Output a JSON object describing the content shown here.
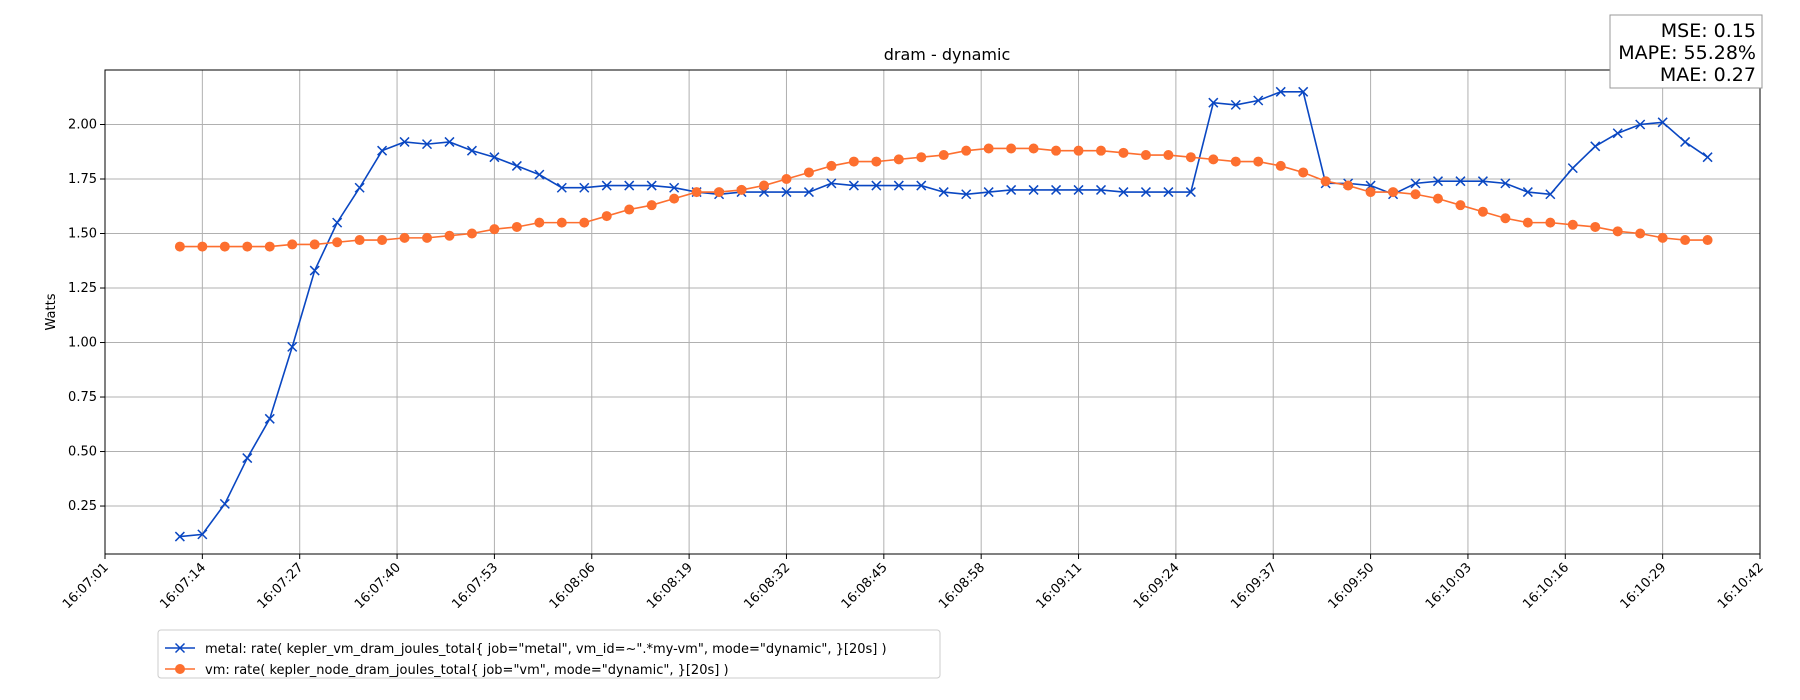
{
  "chart_data": {
    "type": "line",
    "title": "dram - dynamic",
    "xlabel": "",
    "ylabel": "Watts",
    "grid": true,
    "legend_position": "bottom-left",
    "x_ticks": [
      "16:07:01",
      "16:07:14",
      "16:07:27",
      "16:07:40",
      "16:07:53",
      "16:08:06",
      "16:08:19",
      "16:08:32",
      "16:08:45",
      "16:08:58",
      "16:09:11",
      "16:09:24",
      "16:09:37",
      "16:09:50",
      "16:10:03",
      "16:10:16",
      "16:10:29",
      "16:10:42"
    ],
    "y_ticks": [
      0.25,
      0.5,
      0.75,
      1.0,
      1.25,
      1.5,
      1.75,
      2.0
    ],
    "xlim": [
      "16:07:01",
      "16:10:42"
    ],
    "ylim": [
      0.03,
      2.25
    ],
    "x": [
      "16:07:11",
      "16:07:14",
      "16:07:17",
      "16:07:20",
      "16:07:23",
      "16:07:26",
      "16:07:29",
      "16:07:32",
      "16:07:35",
      "16:07:38",
      "16:07:41",
      "16:07:44",
      "16:07:47",
      "16:07:50",
      "16:07:53",
      "16:07:56",
      "16:07:59",
      "16:08:02",
      "16:08:05",
      "16:08:08",
      "16:08:11",
      "16:08:14",
      "16:08:17",
      "16:08:20",
      "16:08:23",
      "16:08:26",
      "16:08:29",
      "16:08:32",
      "16:08:35",
      "16:08:38",
      "16:08:41",
      "16:08:44",
      "16:08:47",
      "16:08:50",
      "16:08:53",
      "16:08:56",
      "16:08:59",
      "16:09:02",
      "16:09:05",
      "16:09:08",
      "16:09:11",
      "16:09:14",
      "16:09:17",
      "16:09:20",
      "16:09:23",
      "16:09:26",
      "16:09:29",
      "16:09:32",
      "16:09:35",
      "16:09:38",
      "16:09:41",
      "16:09:44",
      "16:09:47",
      "16:09:50",
      "16:09:53",
      "16:09:56",
      "16:09:59",
      "16:10:02",
      "16:10:05",
      "16:10:08",
      "16:10:11",
      "16:10:14",
      "16:10:17",
      "16:10:20",
      "16:10:23",
      "16:10:26",
      "16:10:29",
      "16:10:32",
      "16:10:35"
    ],
    "series": [
      {
        "name": "metal: rate( kepler_vm_dram_joules_total{ job=\"metal\", vm_id=~\".*my-vm\", mode=\"dynamic\", }[20s] )",
        "color": "#0a47c2",
        "marker": "x",
        "values": [
          0.11,
          0.12,
          0.26,
          0.47,
          0.65,
          0.98,
          1.33,
          1.55,
          1.71,
          1.88,
          1.92,
          1.91,
          1.92,
          1.88,
          1.85,
          1.81,
          1.77,
          1.71,
          1.71,
          1.72,
          1.72,
          1.72,
          1.71,
          1.69,
          1.68,
          1.69,
          1.69,
          1.69,
          1.69,
          1.73,
          1.72,
          1.72,
          1.72,
          1.72,
          1.69,
          1.68,
          1.69,
          1.7,
          1.7,
          1.7,
          1.7,
          1.7,
          1.69,
          1.69,
          1.69,
          1.69,
          2.1,
          2.09,
          2.11,
          2.15,
          2.15,
          1.73,
          1.73,
          1.72,
          1.68,
          1.73,
          1.74,
          1.74,
          1.74,
          1.73,
          1.69,
          1.68,
          1.8,
          1.9,
          1.96,
          2.0,
          2.01,
          1.92,
          1.85
        ]
      },
      {
        "name": "vm: rate( kepler_node_dram_joules_total{ job=\"vm\", mode=\"dynamic\", }[20s] )",
        "color": "#fd6f2f",
        "marker": "o",
        "values": [
          1.44,
          1.44,
          1.44,
          1.44,
          1.44,
          1.45,
          1.45,
          1.46,
          1.47,
          1.47,
          1.48,
          1.48,
          1.49,
          1.5,
          1.52,
          1.53,
          1.55,
          1.55,
          1.55,
          1.58,
          1.61,
          1.63,
          1.66,
          1.69,
          1.69,
          1.7,
          1.72,
          1.75,
          1.78,
          1.81,
          1.83,
          1.83,
          1.84,
          1.85,
          1.86,
          1.88,
          1.89,
          1.89,
          1.89,
          1.88,
          1.88,
          1.88,
          1.87,
          1.86,
          1.86,
          1.85,
          1.84,
          1.83,
          1.83,
          1.81,
          1.78,
          1.74,
          1.72,
          1.69,
          1.69,
          1.68,
          1.66,
          1.63,
          1.6,
          1.57,
          1.55,
          1.55,
          1.54,
          1.53,
          1.51,
          1.5,
          1.48,
          1.47,
          1.47
        ]
      }
    ]
  },
  "metrics_box": {
    "mse": "MSE: 0.15",
    "mape": "MAPE: 55.28%",
    "mae": "MAE: 0.27"
  }
}
